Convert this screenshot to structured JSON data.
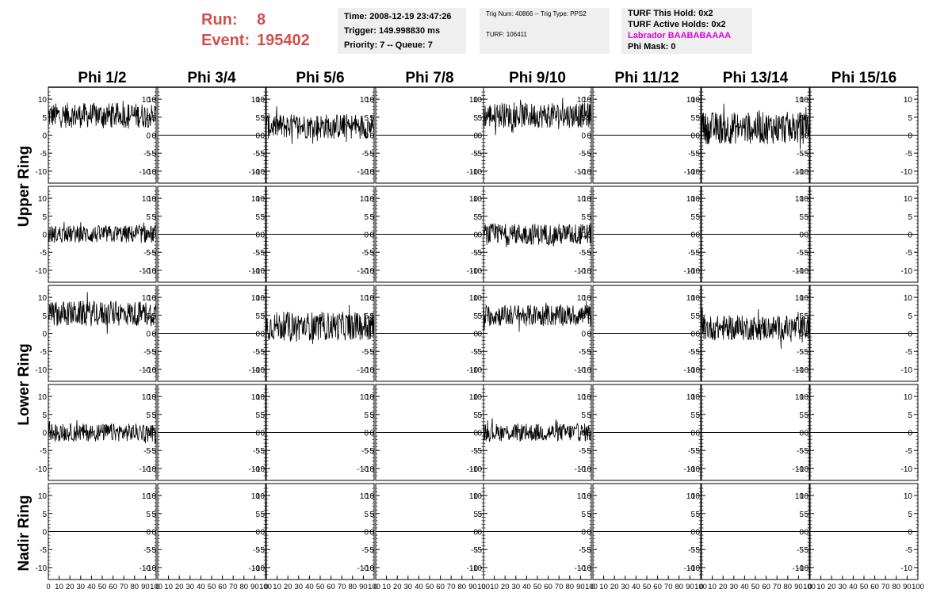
{
  "header": {
    "run_label": "Run:",
    "run_value": "8",
    "event_label": "Event:",
    "event_value": "195402",
    "time": "Time: 2008-12-19 23:47:26",
    "trigger": "Trigger: 149.998830 ms",
    "priority": "Priority: 7 -- Queue: 7",
    "trig_num": "Trig Num: 40866 -- Trig Type: PPS2",
    "turf": "TURF: 106411",
    "turf_this_hold": "TURF This Hold: 0x2",
    "turf_active_holds": "TURF Active Holds: 0x2",
    "labrador": "Labrador BAABABAAAA",
    "phi_mask": "Phi Mask: 0"
  },
  "colors": {
    "run_text": "#d05050",
    "labrador_text": "#e000e0",
    "trace": "#000000"
  },
  "chart_data": {
    "type": "line",
    "columns": [
      "Phi 1/2",
      "Phi 3/4",
      "Phi 5/6",
      "Phi 7/8",
      "Phi 9/10",
      "Phi 11/12",
      "Phi 13/14",
      "Phi 15/16"
    ],
    "ring_labels": [
      "Upper Ring",
      "Lower Ring",
      "Nadir Ring"
    ],
    "rows": 5,
    "ylim": [
      -12,
      12
    ],
    "xlim": [
      0,
      100
    ],
    "yticks": [
      -10,
      -5,
      0,
      5,
      10
    ],
    "xticks": [
      0,
      10,
      20,
      30,
      40,
      50,
      60,
      70,
      80,
      90,
      100
    ],
    "xtick_labels_text": "0 102030405060708090100",
    "active_traces": [
      {
        "row": 0,
        "col": 0,
        "baseline": 5.5,
        "spread": 3.5
      },
      {
        "row": 0,
        "col": 2,
        "baseline": 2.5,
        "spread": 3.5
      },
      {
        "row": 0,
        "col": 4,
        "baseline": 5.5,
        "spread": 3.5
      },
      {
        "row": 0,
        "col": 6,
        "baseline": 2.0,
        "spread": 4.5
      },
      {
        "row": 1,
        "col": 0,
        "baseline": 0.0,
        "spread": 2.5
      },
      {
        "row": 1,
        "col": 4,
        "baseline": 0.0,
        "spread": 3.0
      },
      {
        "row": 2,
        "col": 0,
        "baseline": 5.5,
        "spread": 3.5
      },
      {
        "row": 2,
        "col": 2,
        "baseline": 2.0,
        "spread": 4.0
      },
      {
        "row": 2,
        "col": 4,
        "baseline": 5.0,
        "spread": 3.0
      },
      {
        "row": 2,
        "col": 6,
        "baseline": 1.5,
        "spread": 3.5
      },
      {
        "row": 3,
        "col": 0,
        "baseline": 0.0,
        "spread": 2.5
      },
      {
        "row": 3,
        "col": 4,
        "baseline": 0.0,
        "spread": 2.5
      }
    ]
  }
}
